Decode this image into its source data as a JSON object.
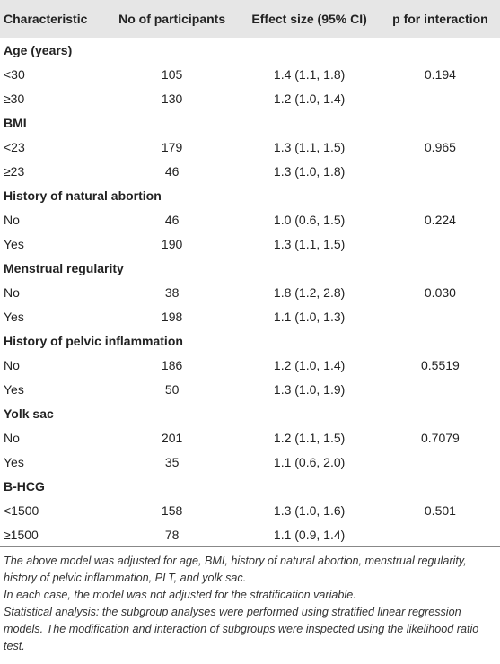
{
  "table": {
    "header": [
      "Characteristic",
      "No of participants",
      "Effect size (95% CI)",
      "p for interaction"
    ],
    "groups": [
      {
        "label": "Age (years)",
        "rows": [
          {
            "label": "<30",
            "n": "105",
            "effect": "1.4 (1.1, 1.8)",
            "p": "0.194"
          },
          {
            "label": "≥30",
            "n": "130",
            "effect": "1.2 (1.0, 1.4)"
          }
        ]
      },
      {
        "label": "BMI",
        "rows": [
          {
            "label": "<23",
            "n": "179",
            "effect": "1.3 (1.1, 1.5)",
            "p": "0.965"
          },
          {
            "label": "≥23",
            "n": "46",
            "effect": "1.3 (1.0, 1.8)"
          }
        ]
      },
      {
        "label": "History of natural abortion",
        "rows": [
          {
            "label": "No",
            "n": "46",
            "effect": "1.0 (0.6, 1.5)",
            "p": "0.224"
          },
          {
            "label": "Yes",
            "n": "190",
            "effect": "1.3 (1.1, 1.5)"
          }
        ]
      },
      {
        "label": "Menstrual regularity",
        "rows": [
          {
            "label": "No",
            "n": "38",
            "effect": "1.8 (1.2, 2.8)",
            "p": "0.030"
          },
          {
            "label": "Yes",
            "n": "198",
            "effect": "1.1 (1.0, 1.3)"
          }
        ]
      },
      {
        "label": "History of pelvic inflammation",
        "rows": [
          {
            "label": "No",
            "n": "186",
            "effect": "1.2 (1.0, 1.4)",
            "p": "0.5519"
          },
          {
            "label": "Yes",
            "n": "50",
            "effect": "1.3 (1.0, 1.9)"
          }
        ]
      },
      {
        "label": "Yolk sac",
        "rows": [
          {
            "label": "No",
            "n": "201",
            "effect": "1.2 (1.1, 1.5)",
            "p": "0.7079"
          },
          {
            "label": "Yes",
            "n": "35",
            "effect": "1.1 (0.6, 2.0)"
          }
        ]
      },
      {
        "label": "B-HCG",
        "rows": [
          {
            "label": "<1500",
            "n": "158",
            "effect": "1.3 (1.0, 1.6)",
            "p": "0.501"
          },
          {
            "label": "≥1500",
            "n": "78",
            "effect": "1.1 (0.9, 1.4)"
          }
        ]
      }
    ]
  },
  "notes": [
    "The above model was adjusted for age, BMI, history of natural abortion, menstrual regularity, history of pelvic inflammation, PLT, and yolk sac.",
    "In each case, the model was not adjusted for the stratification variable.",
    "Statistical analysis: the subgroup analyses were performed using stratified linear regression models. The modification and interaction of subgroups were inspected using the likelihood ratio test."
  ]
}
